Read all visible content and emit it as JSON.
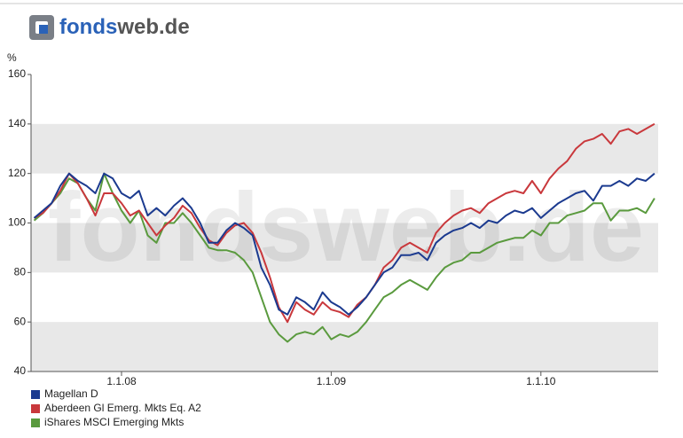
{
  "header": {
    "brand": [
      "fonds",
      "web.de"
    ]
  },
  "chart_data": {
    "type": "line",
    "ylabel": "%",
    "categories": [
      null,
      null,
      null,
      null,
      null,
      null,
      null,
      null,
      null,
      null,
      "1.1.08",
      null,
      null,
      null,
      null,
      null,
      null,
      null,
      null,
      null,
      null,
      null,
      null,
      null,
      null,
      null,
      null,
      null,
      null,
      null,
      null,
      null,
      null,
      null,
      "1.1.09",
      null,
      null,
      null,
      null,
      null,
      null,
      null,
      null,
      null,
      null,
      null,
      null,
      null,
      null,
      null,
      null,
      null,
      null,
      null,
      null,
      null,
      null,
      null,
      "1.1.10",
      null,
      null,
      null,
      null,
      null,
      null,
      null,
      null,
      null,
      null,
      null,
      null,
      null
    ],
    "ylim": [
      40,
      160
    ],
    "yticks": [
      40,
      60,
      80,
      100,
      120,
      140,
      160
    ],
    "grid": true,
    "series": [
      {
        "name": "Magellan D",
        "color": "#1b3a8f",
        "values": [
          102,
          105,
          108,
          115,
          120,
          117,
          115,
          112,
          120,
          118,
          112,
          110,
          113,
          103,
          106,
          103,
          107,
          110,
          106,
          100,
          92,
          92,
          97,
          100,
          98,
          95,
          82,
          75,
          65,
          63,
          70,
          68,
          65,
          72,
          68,
          66,
          63,
          66,
          70,
          75,
          80,
          82,
          87,
          87,
          88,
          85,
          92,
          95,
          97,
          98,
          100,
          98,
          101,
          100,
          103,
          105,
          104,
          106,
          102,
          105,
          108,
          110,
          112,
          113,
          109,
          115,
          115,
          117,
          115,
          118,
          117,
          120
        ]
      },
      {
        "name": "Aberdeen Gl Emerg. Mkts Eq. A2",
        "color": "#c9383c",
        "values": [
          102,
          104,
          108,
          113,
          120,
          116,
          110,
          103,
          112,
          112,
          108,
          103,
          105,
          100,
          95,
          99,
          102,
          107,
          104,
          98,
          93,
          91,
          96,
          99,
          100,
          96,
          88,
          78,
          66,
          60,
          68,
          65,
          63,
          68,
          65,
          64,
          62,
          67,
          70,
          75,
          82,
          85,
          90,
          92,
          90,
          88,
          96,
          100,
          103,
          105,
          106,
          104,
          108,
          110,
          112,
          113,
          112,
          117,
          112,
          118,
          122,
          125,
          130,
          133,
          134,
          136,
          132,
          137,
          138,
          136,
          138,
          140
        ]
      },
      {
        "name": "iShares MSCI Emerging Mkts",
        "color": "#5a9a3e",
        "values": [
          101,
          104,
          108,
          112,
          118,
          116,
          110,
          105,
          120,
          112,
          105,
          100,
          105,
          95,
          92,
          100,
          100,
          104,
          100,
          95,
          90,
          89,
          89,
          88,
          85,
          80,
          70,
          60,
          55,
          52,
          55,
          56,
          55,
          58,
          53,
          55,
          54,
          56,
          60,
          65,
          70,
          72,
          75,
          77,
          75,
          73,
          78,
          82,
          84,
          85,
          88,
          88,
          90,
          92,
          93,
          94,
          94,
          97,
          95,
          100,
          100,
          103,
          104,
          105,
          108,
          108,
          101,
          105,
          105,
          106,
          104,
          110
        ]
      }
    ]
  }
}
